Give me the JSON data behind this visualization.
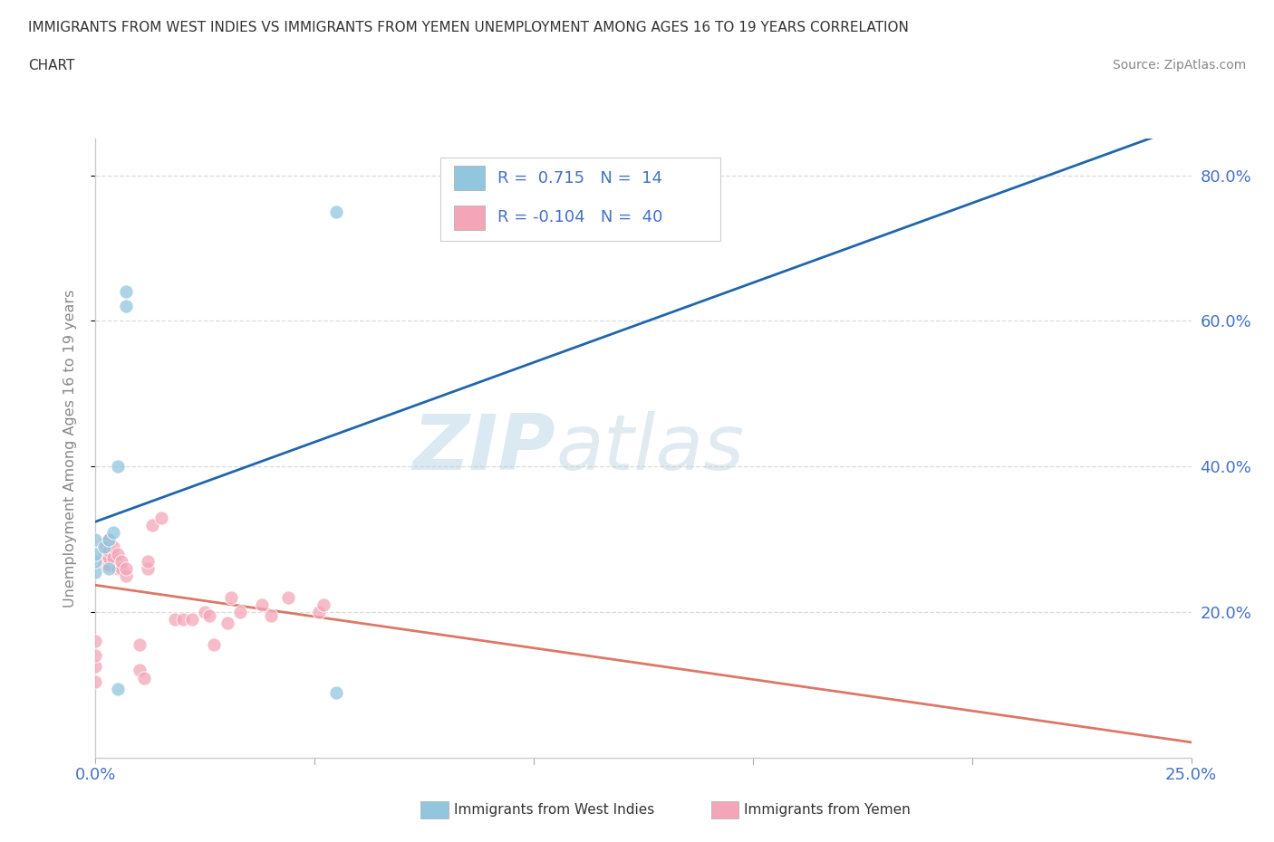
{
  "title_line1": "IMMIGRANTS FROM WEST INDIES VS IMMIGRANTS FROM YEMEN UNEMPLOYMENT AMONG AGES 16 TO 19 YEARS CORRELATION",
  "title_line2": "CHART",
  "source_text": "Source: ZipAtlas.com",
  "ylabel": "Unemployment Among Ages 16 to 19 years",
  "xlim": [
    0.0,
    0.25
  ],
  "ylim": [
    0.0,
    0.85
  ],
  "ytick_values": [
    0.2,
    0.4,
    0.6,
    0.8
  ],
  "watermark_zip": "ZIP",
  "watermark_atlas": "atlas",
  "R_west_indies": 0.715,
  "N_west_indies": 14,
  "R_yemen": -0.104,
  "N_yemen": 40,
  "color_west_indies": "#92c5de",
  "color_yemen": "#f4a6b8",
  "trendline_color_west_indies": "#2166ac",
  "trendline_color_yemen": "#d6604d",
  "west_indies_x": [
    0.0,
    0.0,
    0.0,
    0.0,
    0.002,
    0.003,
    0.003,
    0.004,
    0.005,
    0.005,
    0.007,
    0.007,
    0.055,
    0.055
  ],
  "west_indies_y": [
    0.255,
    0.27,
    0.28,
    0.3,
    0.29,
    0.26,
    0.3,
    0.31,
    0.095,
    0.4,
    0.62,
    0.64,
    0.75,
    0.09
  ],
  "yemen_x": [
    0.0,
    0.0,
    0.0,
    0.0,
    0.002,
    0.002,
    0.002,
    0.003,
    0.003,
    0.003,
    0.003,
    0.004,
    0.004,
    0.005,
    0.005,
    0.006,
    0.006,
    0.007,
    0.007,
    0.01,
    0.01,
    0.011,
    0.012,
    0.012,
    0.013,
    0.015,
    0.018,
    0.02,
    0.022,
    0.025,
    0.026,
    0.027,
    0.03,
    0.031,
    0.033,
    0.038,
    0.04,
    0.044,
    0.051,
    0.052
  ],
  "yemen_y": [
    0.105,
    0.125,
    0.14,
    0.16,
    0.265,
    0.28,
    0.295,
    0.265,
    0.275,
    0.285,
    0.3,
    0.275,
    0.29,
    0.26,
    0.28,
    0.26,
    0.27,
    0.25,
    0.26,
    0.155,
    0.12,
    0.11,
    0.26,
    0.27,
    0.32,
    0.33,
    0.19,
    0.19,
    0.19,
    0.2,
    0.195,
    0.155,
    0.185,
    0.22,
    0.2,
    0.21,
    0.195,
    0.22,
    0.2,
    0.21
  ]
}
